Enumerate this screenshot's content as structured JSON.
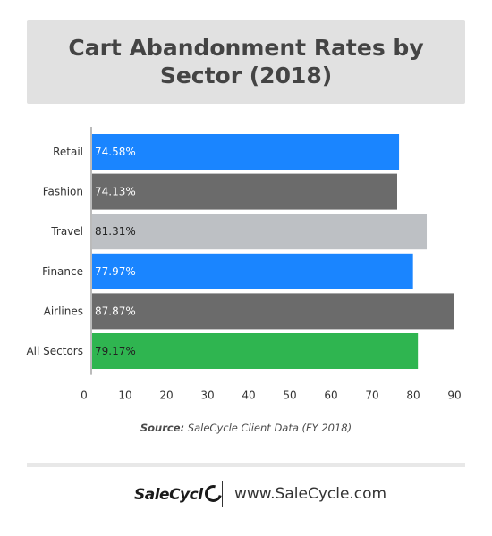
{
  "chart_data": {
    "type": "bar",
    "orientation": "horizontal",
    "title": "Cart Abandonment Rates by Sector (2018)",
    "categories": [
      "Retail",
      "Fashion",
      "Travel",
      "Finance",
      "Airlines",
      "All Sectors"
    ],
    "values": [
      74.58,
      74.13,
      81.31,
      77.97,
      87.87,
      79.17
    ],
    "data_labels": [
      "74.58%",
      "74.13%",
      "81.31%",
      "77.97%",
      "87.87%",
      "79.17%"
    ],
    "bar_colors": [
      "#1a85ff",
      "#6b6b6b",
      "#bdc0c4",
      "#1a85ff",
      "#6b6b6b",
      "#2fb550"
    ],
    "label_colors": [
      "#ffffff",
      "#ffffff",
      "#222222",
      "#ffffff",
      "#ffffff",
      "#222222"
    ],
    "xlim": [
      0,
      90
    ],
    "xticks": [
      0,
      10,
      20,
      30,
      40,
      50,
      60,
      70,
      80,
      90
    ],
    "grid": false,
    "legend": "none"
  },
  "source": {
    "label": "Source:",
    "text": "SaleCycle Client Data (FY 2018)"
  },
  "footer": {
    "logo_text": "SaleCycl",
    "website": "www.SaleCycle.com"
  }
}
